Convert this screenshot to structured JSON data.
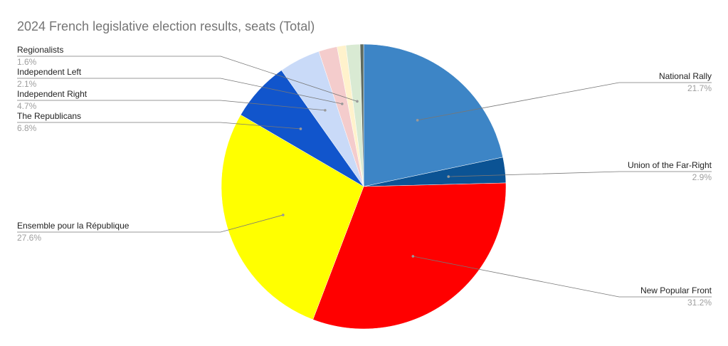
{
  "chart_data": {
    "type": "pie",
    "title": "2024 French legislative election results, seats (Total)",
    "categories": [
      "National Rally",
      "Union of the Far-Right",
      "New Popular Front",
      "Ensemble pour la République",
      "The Republicans",
      "Independent Right",
      "Independent Left",
      null,
      "Regionalists",
      null
    ],
    "values": [
      21.7,
      2.9,
      31.2,
      27.6,
      6.8,
      4.7,
      2.1,
      1.0,
      1.6,
      0.4
    ],
    "value_labels": [
      "21.7%",
      "2.9%",
      "31.2%",
      "27.6%",
      "6.8%",
      "4.7%",
      "2.1%",
      null,
      "1.6%",
      null
    ],
    "colors": [
      "#3d85c6",
      "#0b5394",
      "#ff0000",
      "#ffff00",
      "#1155cc",
      "#c9daf8",
      "#f4cccc",
      "#fff2cc",
      "#d9ead3",
      "#5f6b5f"
    ]
  }
}
